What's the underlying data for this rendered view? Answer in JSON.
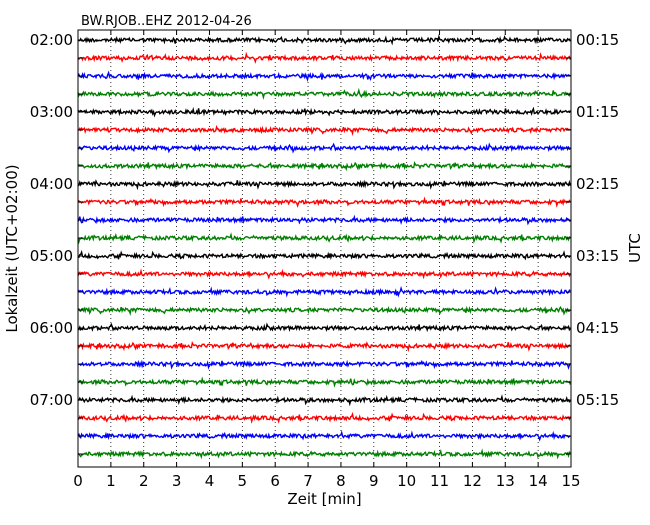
{
  "chart_data": {
    "type": "line",
    "title": "BW.RJOB..EHZ 2012-04-26",
    "xlabel": "Zeit  [min]",
    "ylabel_left": "Lokalzeit (UTC+02:00)",
    "ylabel_right": "UTC",
    "xlim": [
      0,
      15
    ],
    "x_ticks": [
      "0",
      "1",
      "2",
      "3",
      "4",
      "5",
      "6",
      "7",
      "8",
      "9",
      "10",
      "11",
      "12",
      "13",
      "14",
      "15"
    ],
    "grid": "vertical dotted lines at each minute",
    "trace_count": 24,
    "trace_color_cycle": [
      "#000000",
      "#ff0000",
      "#0000ff",
      "#008000"
    ],
    "left_time_labels": [
      "02:00",
      "03:00",
      "04:00",
      "05:00",
      "06:00",
      "07:00"
    ],
    "right_time_labels": [
      "00:15",
      "01:15",
      "02:15",
      "03:15",
      "04:15",
      "05:15"
    ],
    "labeled_every_n_traces": 4
  }
}
